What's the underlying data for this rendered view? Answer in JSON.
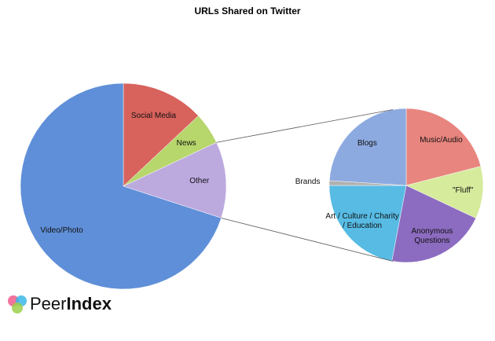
{
  "chart_data": [
    {
      "type": "pie",
      "title": "URLs Shared on Twitter",
      "categories": [
        "Social Media",
        "News",
        "Other",
        "Video/Photo"
      ],
      "values": [
        13,
        5,
        12,
        70
      ],
      "colors": [
        "#d8625c",
        "#b7d66c",
        "#bcaadf",
        "#5f8fd8"
      ]
    },
    {
      "type": "pie",
      "categories": [
        "Music/Audio",
        "\"Fluff\"",
        "Anonymous Questions",
        "Art / Culture / Charity / Education",
        "Brands",
        "Blogs"
      ],
      "values": [
        21,
        11,
        21,
        22,
        1,
        24
      ],
      "colors": [
        "#e8857e",
        "#d6eb9c",
        "#8c6cc0",
        "#57bbe4",
        "#b0b0b0",
        "#8daae0"
      ]
    }
  ],
  "logo": {
    "light": "Peer",
    "bold": "Index"
  }
}
